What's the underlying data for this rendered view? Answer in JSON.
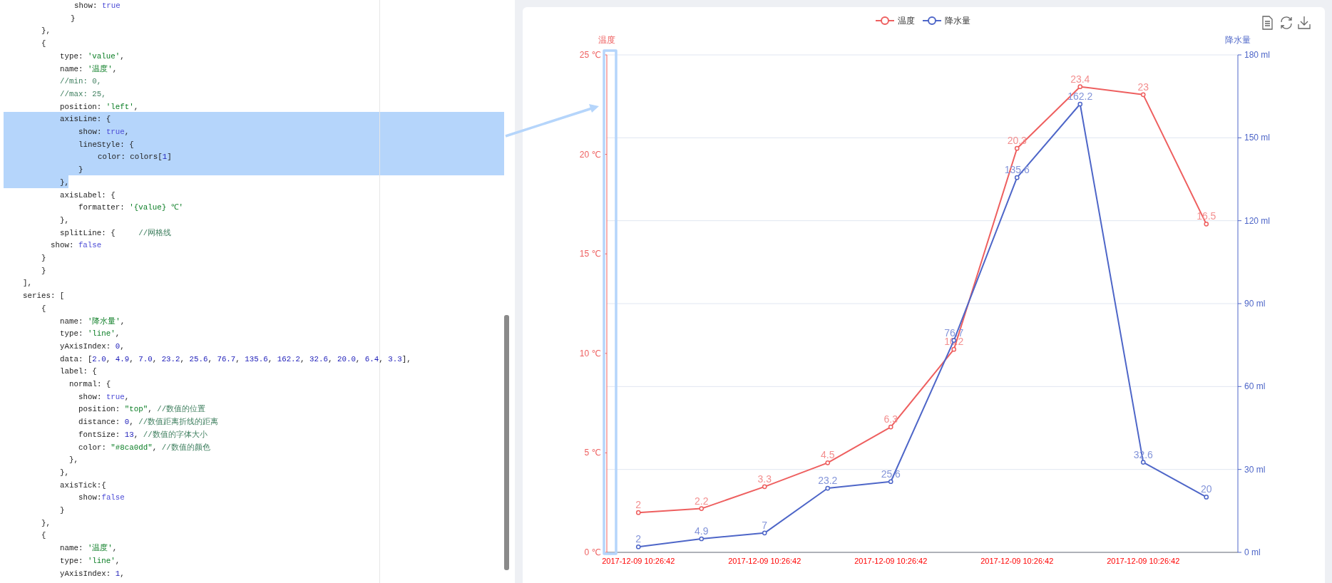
{
  "chart_data": {
    "type": "line",
    "categories": [
      "2017-12-09 10:26:42",
      null,
      "2017-12-09 10:26:42",
      null,
      "2017-12-09 10:26:42",
      null,
      "2017-12-09 10:26:42",
      null,
      "2017-12-09 10:26:42",
      null
    ],
    "ylabel": "温度",
    "y2label": "降水量",
    "ylim": [
      0,
      25
    ],
    "yticks": [
      {
        "value": 0,
        "label": "0 ℃"
      },
      {
        "value": 5,
        "label": "5 ℃"
      },
      {
        "value": 10,
        "label": "10 ℃"
      },
      {
        "value": 15,
        "label": "15 ℃"
      },
      {
        "value": 20,
        "label": "20 ℃"
      },
      {
        "value": 25,
        "label": "25 ℃"
      }
    ],
    "y2lim": [
      0,
      180
    ],
    "y2ticks": [
      {
        "value": 0,
        "label": "0 ml"
      },
      {
        "value": 30,
        "label": "30 ml"
      },
      {
        "value": 60,
        "label": "60 ml"
      },
      {
        "value": 90,
        "label": "90 ml"
      },
      {
        "value": 120,
        "label": "120 ml"
      },
      {
        "value": 150,
        "label": "150 ml"
      },
      {
        "value": 180,
        "label": "180 ml"
      }
    ],
    "series": [
      {
        "name": "温度",
        "color": "#ee5f5f",
        "values": [
          2,
          2.2,
          3.3,
          4.5,
          6.3,
          10.2,
          20.3,
          23.4,
          23,
          16.5
        ]
      },
      {
        "name": "降水量",
        "color": "#4e66c8",
        "axis": "y2",
        "values": [
          2,
          4.9,
          7,
          23.2,
          25.6,
          76.7,
          135.6,
          162.2,
          32.6,
          20
        ]
      }
    ],
    "data_labels": true,
    "marker": "circle",
    "line_style": "solid",
    "grid": "y",
    "legend": "top",
    "annotations": [
      "show: true",
      "}",
      "},",
      "{",
      "type: 'value',",
      "name: '温度',",
      "//min: 0,",
      "//max: 25,",
      "position: 'left',",
      "axisLine: {",
      "show: true,",
      "lineStyle: {",
      "color: colors[1]",
      "}",
      "},",
      "axisLabel: {",
      "formatter: '{value} ℃'",
      "},",
      "splitLine: {     //网格线",
      "show: false",
      "}",
      "}",
      "],",
      "series: [",
      "{",
      "name: '降水量',",
      "type: 'line',",
      "yAxisIndex: 0,",
      "data: [2.0, 4.9, 7.0, 23.2, 25.6, 76.7, 135.6, 162.2, 32.6, 20.0, 6.4, 3.3],",
      "label: {",
      "normal: {",
      "show: true,",
      "position: \"top\", //数值的位置",
      "distance: 0, //数值距离折线的距离",
      "fontSize: 13, //数值的字体大小",
      "color: \"#8ca0dd\", //数值的颜色",
      "},",
      "},",
      "axisTick:{",
      "show:false",
      "}",
      "},",
      "{",
      "name: '温度',",
      "type: 'line',",
      "yAxisIndex: 1,"
    ]
  }
}
